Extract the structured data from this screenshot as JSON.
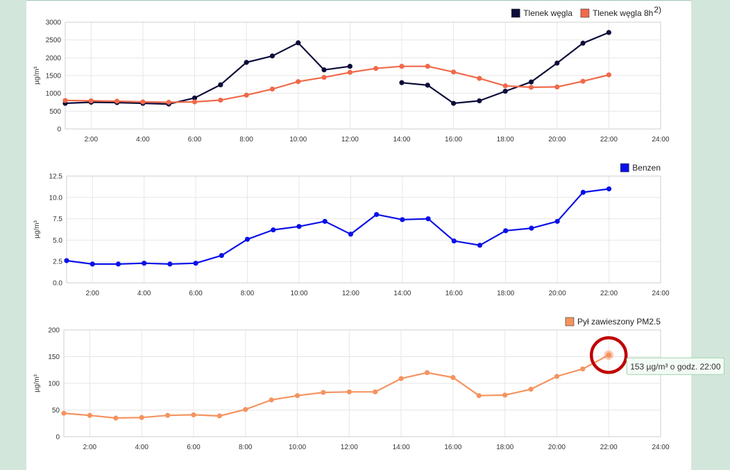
{
  "unit_label": "µg/m³",
  "tooltip": {
    "chart_index": 2,
    "point_index": 21,
    "text": "153 µg/m³ o godz. 22:00"
  },
  "chart_data": [
    {
      "type": "line",
      "ylabel": "µg/m³",
      "xlim": [
        1,
        24
      ],
      "ylim": [
        0,
        3000
      ],
      "xticks": [
        "2:00",
        "4:00",
        "6:00",
        "8:00",
        "10:00",
        "12:00",
        "14:00",
        "16:00",
        "18:00",
        "20:00",
        "22:00",
        "24:00"
      ],
      "yticks": [
        "0",
        "500",
        "1000",
        "1500",
        "2000",
        "2500",
        "3000"
      ],
      "grid": true,
      "legend_position": "top-right",
      "series": [
        {
          "name": "Tlenek węgla",
          "color": "#0c0c3a",
          "x": [
            1,
            2,
            3,
            4,
            5,
            6,
            7,
            8,
            9,
            10,
            11,
            12,
            13,
            14,
            15,
            16,
            17,
            18,
            19,
            20,
            21,
            22
          ],
          "y": [
            720,
            750,
            740,
            720,
            700,
            870,
            1240,
            1870,
            2050,
            2420,
            1660,
            1760,
            null,
            1300,
            1230,
            720,
            790,
            1060,
            1320,
            1850,
            2410,
            2710
          ]
        },
        {
          "name": "Tlenek węgla 8h",
          "name_sup": "2)",
          "color": "#f0694a",
          "x": [
            1,
            2,
            3,
            4,
            5,
            6,
            7,
            8,
            9,
            10,
            11,
            12,
            13,
            14,
            15,
            16,
            17,
            18,
            19,
            20,
            21,
            22
          ],
          "y": [
            800,
            790,
            780,
            760,
            750,
            760,
            810,
            950,
            1120,
            1330,
            1450,
            1590,
            1700,
            1760,
            1760,
            1600,
            1420,
            1210,
            1170,
            1180,
            1340,
            1520
          ]
        }
      ]
    },
    {
      "type": "line",
      "ylabel": "µg/m³",
      "xlim": [
        1,
        24
      ],
      "ylim": [
        0,
        12.5
      ],
      "xticks": [
        "2:00",
        "4:00",
        "6:00",
        "8:00",
        "10:00",
        "12:00",
        "14:00",
        "16:00",
        "18:00",
        "20:00",
        "22:00",
        "24:00"
      ],
      "yticks": [
        "0.0",
        "2.5",
        "5.0",
        "7.5",
        "10.0",
        "12.5"
      ],
      "grid": true,
      "legend_position": "top-right",
      "series": [
        {
          "name": "Benzen",
          "color": "#0a10e8",
          "x": [
            1,
            2,
            3,
            4,
            5,
            6,
            7,
            8,
            9,
            10,
            11,
            12,
            13,
            14,
            15,
            16,
            17,
            18,
            19,
            20,
            21,
            22
          ],
          "y": [
            2.6,
            2.2,
            2.2,
            2.3,
            2.2,
            2.3,
            3.2,
            5.1,
            6.2,
            6.6,
            7.2,
            5.7,
            8.0,
            7.4,
            7.5,
            4.9,
            4.4,
            6.1,
            6.4,
            7.2,
            10.6,
            11.0
          ]
        }
      ]
    },
    {
      "type": "line",
      "ylabel": "µg/m³",
      "xlim": [
        1,
        24
      ],
      "ylim": [
        0,
        200
      ],
      "xticks": [
        "2:00",
        "4:00",
        "6:00",
        "8:00",
        "10:00",
        "12:00",
        "14:00",
        "16:00",
        "18:00",
        "20:00",
        "22:00",
        "24:00"
      ],
      "yticks": [
        "0",
        "50",
        "100",
        "150",
        "200"
      ],
      "grid": true,
      "legend_position": "top-right",
      "series": [
        {
          "name": "Pył zawieszony PM2.5",
          "color": "#f5935f",
          "x": [
            1,
            2,
            3,
            4,
            5,
            6,
            7,
            8,
            9,
            10,
            11,
            12,
            13,
            14,
            15,
            16,
            17,
            18,
            19,
            20,
            21,
            22
          ],
          "y": [
            44,
            40,
            35,
            36,
            40,
            41,
            39,
            51,
            69,
            77,
            83,
            84,
            84,
            109,
            120,
            111,
            77,
            78,
            89,
            113,
            127,
            153
          ]
        }
      ]
    }
  ]
}
